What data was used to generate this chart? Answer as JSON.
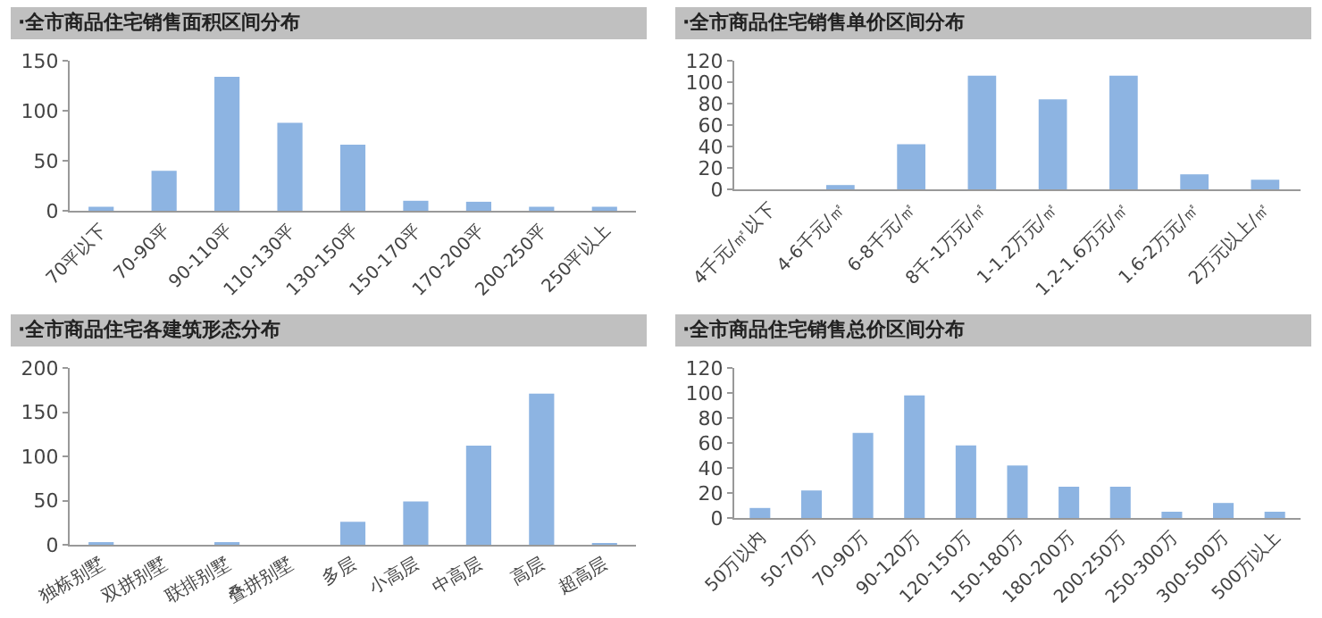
{
  "chart_data": [
    {
      "type": "bar",
      "title": "·全市商品住宅销售面积区间分布",
      "categories": [
        "70平以下",
        "70-90平",
        "90-110平",
        "110-130平",
        "130-150平",
        "150-170平",
        "170-200平",
        "200-250平",
        "250平以上"
      ],
      "values": [
        4,
        40,
        134,
        88,
        66,
        10,
        9,
        4,
        4
      ],
      "color": "#8db4e2",
      "ylim": [
        0,
        150
      ],
      "yticks": [
        0,
        50,
        100,
        150
      ]
    },
    {
      "type": "bar",
      "title": "·全市商品住宅销售单价区间分布",
      "categories": [
        "4千元/㎡以下",
        "4-6千元/㎡",
        "6-8千元/㎡",
        "8千-1万元/㎡",
        "1-1.2万元/㎡",
        "1.2-1.6万元/㎡",
        "1.6-2万元/㎡",
        "2万元以上/㎡"
      ],
      "values": [
        0,
        4,
        42,
        106,
        84,
        106,
        14,
        9
      ],
      "color": "#8db4e2",
      "ylim": [
        0,
        120
      ],
      "yticks": [
        0,
        20,
        40,
        60,
        80,
        100,
        120
      ]
    },
    {
      "type": "bar",
      "title": "·全市商品住宅各建筑形态分布",
      "categories": [
        "独栋别墅",
        "双拼别墅",
        "联排别墅",
        "叠拼别墅",
        "多层",
        "小高层",
        "中高层",
        "高层",
        "超高层"
      ],
      "values": [
        3,
        0,
        3,
        0,
        26,
        49,
        112,
        171,
        2
      ],
      "color": "#8db4e2",
      "ylim": [
        0,
        200
      ],
      "yticks": [
        0,
        50,
        100,
        150,
        200
      ]
    },
    {
      "type": "bar",
      "title": "·全市商品住宅销售总价区间分布",
      "categories": [
        "50万以内",
        "50-70万",
        "70-90万",
        "90-120万",
        "120-150万",
        "150-180万",
        "180-200万",
        "200-250万",
        "250-300万",
        "300-500万",
        "500万以上"
      ],
      "values": [
        8,
        22,
        68,
        98,
        58,
        42,
        25,
        25,
        5,
        12,
        5
      ],
      "color": "#8db4e2",
      "ylim": [
        0,
        120
      ],
      "yticks": [
        0,
        20,
        40,
        60,
        80,
        100,
        120
      ]
    }
  ]
}
